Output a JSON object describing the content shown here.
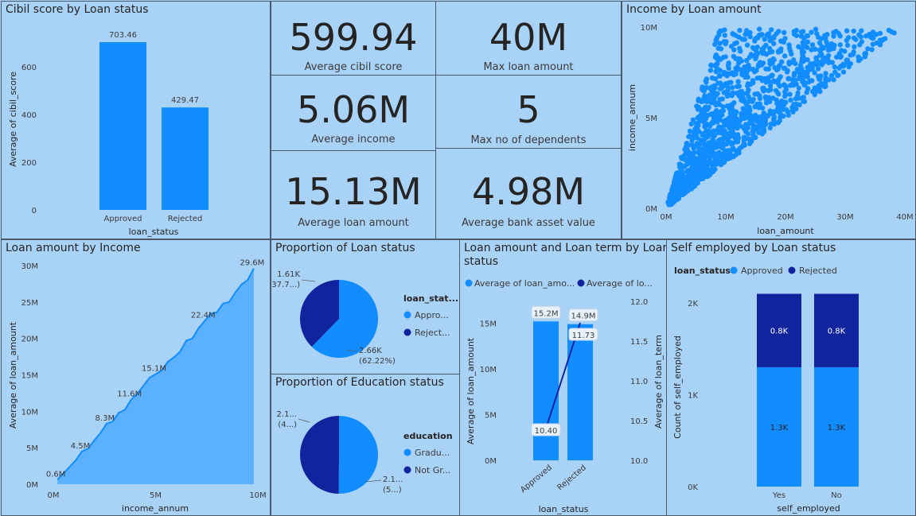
{
  "colors": {
    "primary": "#118dff",
    "dark": "#12239e",
    "bg": "#a9d2f7",
    "area": "#5bb0ff"
  },
  "cards": [
    {
      "value": "599.94",
      "label": "Average cibil score"
    },
    {
      "value": "40M",
      "label": "Max loan amount"
    },
    {
      "value": "5.06M",
      "label": "Average income"
    },
    {
      "value": "5",
      "label": "Max no of dependents"
    },
    {
      "value": "15.13M",
      "label": "Average loan amount"
    },
    {
      "value": "4.98M",
      "label": "Average bank asset value"
    }
  ],
  "chart_data": [
    {
      "id": "cibil",
      "type": "bar",
      "title": "Cibil score by Loan status",
      "xlabel": "loan_status",
      "ylabel": "Average of cibil_score",
      "categories": [
        "Approved",
        "Rejected"
      ],
      "values": [
        703.46,
        429.47
      ],
      "data_labels": [
        "703.46",
        "429.47"
      ],
      "ylim": [
        0,
        740
      ],
      "yticks": [
        {
          "v": 0,
          "l": "0"
        },
        {
          "v": 200,
          "l": "200"
        },
        {
          "v": 400,
          "l": "400"
        },
        {
          "v": 600,
          "l": "600"
        }
      ]
    },
    {
      "id": "scatter",
      "type": "scatter",
      "title": "Income by Loan amount",
      "xlabel": "loan_amount",
      "ylabel": "income_annum",
      "xlim": [
        0,
        40
      ],
      "ylim": [
        0,
        10
      ],
      "units": "M",
      "xticks": [
        "0M",
        "10M",
        "20M",
        "30M",
        "40M"
      ],
      "yticks": [
        "0M",
        "5M",
        "10M"
      ],
      "note": "loan_amount ranges from about 0.3x to 4x income_annum"
    },
    {
      "id": "loanbyincome",
      "type": "area",
      "title": "Loan amount by Income",
      "xlabel": "income_annum",
      "ylabel": "Average of loan_amount",
      "xlim": [
        0,
        10
      ],
      "ylim": [
        0,
        30
      ],
      "xticks": [
        "0M",
        "5M",
        "10M"
      ],
      "yticks": [
        "0M",
        "5M",
        "10M",
        "15M",
        "20M",
        "25M",
        "30M"
      ],
      "x": [
        0.2,
        0.5,
        0.8,
        1.1,
        1.4,
        1.7,
        2.0,
        2.3,
        2.6,
        2.9,
        3.2,
        3.5,
        3.8,
        4.1,
        4.4,
        4.7,
        5.0,
        5.3,
        5.6,
        5.9,
        6.2,
        6.5,
        6.8,
        7.1,
        7.4,
        7.7,
        8.0,
        8.3,
        8.6,
        8.9,
        9.2,
        9.5,
        9.8
      ],
      "y": [
        0.6,
        1.5,
        2.4,
        3.3,
        4.5,
        4.9,
        6.0,
        7.0,
        8.3,
        8.6,
        9.8,
        10.2,
        11.6,
        12.4,
        13.5,
        14.6,
        15.1,
        15.6,
        16.8,
        17.4,
        18.2,
        19.7,
        20.0,
        21.4,
        22.4,
        23.4,
        23.6,
        24.8,
        25.0,
        26.3,
        27.4,
        28.0,
        29.6
      ],
      "point_labels": [
        {
          "i": 0,
          "l": "0.6M"
        },
        {
          "i": 4,
          "l": "4.5M"
        },
        {
          "i": 8,
          "l": "8.3M"
        },
        {
          "i": 12,
          "l": "11.6M"
        },
        {
          "i": 16,
          "l": "15.1M"
        },
        {
          "i": 24,
          "l": "22.4M"
        },
        {
          "i": 32,
          "l": "29.6M"
        }
      ]
    },
    {
      "id": "pie_status",
      "type": "pie",
      "title": "Proportion of Loan status",
      "legend_title": "loan_stat...",
      "slices": [
        {
          "name": "Appro...",
          "value": 2.66,
          "color": "#118dff",
          "label1": "2.66K",
          "label2": "(62.22%)"
        },
        {
          "name": "Reject...",
          "value": 1.61,
          "color": "#12239e",
          "label1": "1.61K",
          "label2": "(37.7...)"
        }
      ]
    },
    {
      "id": "pie_edu",
      "type": "pie",
      "title": "Proportion of Education status",
      "legend_title": "education",
      "slices": [
        {
          "name": "Gradu...",
          "value": 2.14,
          "color": "#118dff",
          "label1": "2.1...",
          "label2": "(5...)"
        },
        {
          "name": "Not Gr...",
          "value": 2.13,
          "color": "#12239e",
          "label1": "2.1...",
          "label2": "(4...)"
        }
      ]
    },
    {
      "id": "combo",
      "type": "bar",
      "title_line1": "Loan amount and Loan term by Loan",
      "title_line2": "status",
      "legend": [
        "Average of  loan_amo...",
        "Average of  lo..."
      ],
      "xlabel": "loan_status",
      "ylabel_left": "Average of loan_amount",
      "ylabel_right": "Average of loan_term",
      "categories": [
        "Approved",
        "Rejected"
      ],
      "bar_values": [
        15.2,
        14.9
      ],
      "bar_labels": [
        "15.2M",
        "14.9M"
      ],
      "line_values": [
        10.4,
        11.73
      ],
      "line_labels": [
        "10.40",
        "11.73"
      ],
      "ylim_left": [
        0,
        17.4
      ],
      "ylim_right": [
        10.0,
        12.0
      ],
      "yticks_left": [
        "0M",
        "5M",
        "10M",
        "15M"
      ],
      "yticks_right": [
        "10.0",
        "10.5",
        "11.0",
        "11.5",
        "12.0"
      ]
    },
    {
      "id": "selfemp",
      "type": "bar",
      "title": "Self employed by Loan status",
      "legend_title": "loan_status",
      "legend": [
        "Approved",
        "Rejected"
      ],
      "xlabel": "self_employed",
      "ylabel": "Count of self_employed",
      "categories": [
        "Yes",
        "No"
      ],
      "series": [
        {
          "name": "Approved",
          "values": [
            1.3,
            1.3
          ],
          "labels": [
            "1.3K",
            "1.3K"
          ]
        },
        {
          "name": "Rejected",
          "values": [
            0.8,
            0.8
          ],
          "labels": [
            "0.8K",
            "0.8K"
          ]
        }
      ],
      "ylim": [
        0,
        2.2
      ],
      "yticks": [
        "0K",
        "1K",
        "2K"
      ]
    }
  ]
}
